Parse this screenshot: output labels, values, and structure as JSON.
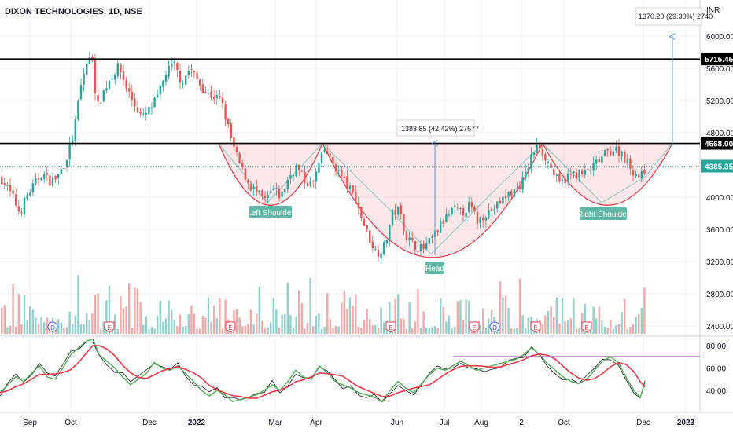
{
  "header": {
    "symbol_line": "DIXON TECHNOLOGIES, 1D, NSE",
    "currency": "INR"
  },
  "chart_data": {
    "type": "candlestick",
    "price_axis": {
      "ticks": [
        "6000.00",
        "5600.00",
        "5200.00",
        "4800.00",
        "4000.00",
        "3600.00",
        "3200.00",
        "2800.00",
        "2400.00"
      ],
      "range": [
        2200,
        6300
      ]
    },
    "osc_axis": {
      "ticks": [
        "80.00",
        "60.00",
        "40.00"
      ],
      "range": [
        18,
        92
      ]
    },
    "x_labels": [
      "Sep",
      "Oct",
      "Dec",
      "2022",
      "Mar",
      "Apr",
      "Jun",
      "Jul",
      "Aug",
      "2",
      "Oct",
      "Dec",
      "2023"
    ],
    "price_labels": {
      "resistance_top": "5715.45",
      "neckline": "4668.00",
      "last_price": "4385.35"
    },
    "levels": [
      5715.45,
      4668.0,
      4385.35
    ],
    "annotations": {
      "target": "1370.20 (29.30%) 2740",
      "depth": "1383.85 (42.42%) 27677",
      "left_shoulder": "Left Shoulder",
      "head": "Head",
      "right_shoulder": "Right Shoulder"
    },
    "markers": [
      "D",
      "E",
      "E",
      "E",
      "E",
      "D",
      "E",
      "E"
    ],
    "osc_level": 70,
    "pattern": "inverse head and shoulders",
    "close_path": [
      [
        0,
        4240
      ],
      [
        8,
        4120
      ],
      [
        16,
        3980
      ],
      [
        24,
        3800
      ],
      [
        32,
        4000
      ],
      [
        42,
        4150
      ],
      [
        52,
        4300
      ],
      [
        62,
        4200
      ],
      [
        72,
        4250
      ],
      [
        82,
        4450
      ],
      [
        92,
        4750
      ],
      [
        100,
        5300
      ],
      [
        108,
        5650
      ],
      [
        116,
        5750
      ],
      [
        122,
        5100
      ],
      [
        130,
        5300
      ],
      [
        140,
        5500
      ],
      [
        150,
        5620
      ],
      [
        160,
        5350
      ],
      [
        170,
        5150
      ],
      [
        180,
        4980
      ],
      [
        190,
        5100
      ],
      [
        200,
        5250
      ],
      [
        210,
        5550
      ],
      [
        220,
        5650
      ],
      [
        230,
        5420
      ],
      [
        240,
        5600
      ],
      [
        250,
        5450
      ],
      [
        260,
        5300
      ],
      [
        270,
        5250
      ],
      [
        280,
        5200
      ],
      [
        288,
        4900
      ],
      [
        296,
        4600
      ],
      [
        306,
        4350
      ],
      [
        316,
        4150
      ],
      [
        326,
        4050
      ],
      [
        336,
        3950
      ],
      [
        346,
        4100
      ],
      [
        356,
        4000
      ],
      [
        366,
        4250
      ],
      [
        376,
        4380
      ],
      [
        386,
        4200
      ],
      [
        396,
        4150
      ],
      [
        404,
        4400
      ],
      [
        412,
        4600
      ],
      [
        420,
        4450
      ],
      [
        430,
        4300
      ],
      [
        440,
        4150
      ],
      [
        450,
        4000
      ],
      [
        460,
        3700
      ],
      [
        470,
        3450
      ],
      [
        478,
        3300
      ],
      [
        488,
        3400
      ],
      [
        498,
        3800
      ],
      [
        506,
        3850
      ],
      [
        516,
        3500
      ],
      [
        526,
        3400
      ],
      [
        536,
        3350
      ],
      [
        546,
        3450
      ],
      [
        556,
        3600
      ],
      [
        566,
        3750
      ],
      [
        576,
        3850
      ],
      [
        586,
        3800
      ],
      [
        596,
        3900
      ],
      [
        606,
        3700
      ],
      [
        616,
        3800
      ],
      [
        626,
        3850
      ],
      [
        636,
        3950
      ],
      [
        646,
        4050
      ],
      [
        656,
        4100
      ],
      [
        666,
        4250
      ],
      [
        676,
        4550
      ],
      [
        684,
        4650
      ],
      [
        692,
        4500
      ],
      [
        700,
        4350
      ],
      [
        710,
        4150
      ],
      [
        720,
        4250
      ],
      [
        730,
        4300
      ],
      [
        740,
        4280
      ],
      [
        750,
        4350
      ],
      [
        760,
        4450
      ],
      [
        770,
        4550
      ],
      [
        780,
        4600
      ],
      [
        790,
        4550
      ],
      [
        798,
        4400
      ],
      [
        806,
        4300
      ],
      [
        814,
        4250
      ],
      [
        820,
        4385
      ]
    ],
    "oscillator_path": [
      [
        0,
        38
      ],
      [
        10,
        45
      ],
      [
        20,
        52
      ],
      [
        30,
        48
      ],
      [
        40,
        55
      ],
      [
        50,
        62
      ],
      [
        60,
        52
      ],
      [
        70,
        50
      ],
      [
        80,
        60
      ],
      [
        90,
        72
      ],
      [
        100,
        78
      ],
      [
        110,
        84
      ],
      [
        118,
        86
      ],
      [
        126,
        72
      ],
      [
        136,
        66
      ],
      [
        146,
        60
      ],
      [
        156,
        52
      ],
      [
        166,
        45
      ],
      [
        176,
        50
      ],
      [
        186,
        55
      ],
      [
        196,
        65
      ],
      [
        206,
        60
      ],
      [
        216,
        58
      ],
      [
        226,
        62
      ],
      [
        236,
        55
      ],
      [
        246,
        48
      ],
      [
        256,
        40
      ],
      [
        266,
        35
      ],
      [
        276,
        40
      ],
      [
        286,
        36
      ],
      [
        296,
        30
      ],
      [
        306,
        32
      ],
      [
        316,
        34
      ],
      [
        326,
        36
      ],
      [
        336,
        40
      ],
      [
        346,
        45
      ],
      [
        356,
        40
      ],
      [
        366,
        48
      ],
      [
        376,
        58
      ],
      [
        386,
        52
      ],
      [
        396,
        50
      ],
      [
        406,
        62
      ],
      [
        416,
        56
      ],
      [
        426,
        48
      ],
      [
        436,
        45
      ],
      [
        446,
        42
      ],
      [
        456,
        38
      ],
      [
        466,
        36
      ],
      [
        476,
        34
      ],
      [
        486,
        30
      ],
      [
        496,
        40
      ],
      [
        506,
        48
      ],
      [
        516,
        42
      ],
      [
        526,
        38
      ],
      [
        536,
        46
      ],
      [
        546,
        54
      ],
      [
        556,
        60
      ],
      [
        566,
        58
      ],
      [
        576,
        62
      ],
      [
        586,
        66
      ],
      [
        596,
        62
      ],
      [
        606,
        58
      ],
      [
        616,
        60
      ],
      [
        626,
        62
      ],
      [
        636,
        64
      ],
      [
        646,
        66
      ],
      [
        656,
        68
      ],
      [
        666,
        72
      ],
      [
        676,
        78
      ],
      [
        686,
        72
      ],
      [
        696,
        64
      ],
      [
        706,
        58
      ],
      [
        716,
        52
      ],
      [
        726,
        48
      ],
      [
        736,
        46
      ],
      [
        746,
        50
      ],
      [
        756,
        58
      ],
      [
        766,
        66
      ],
      [
        776,
        70
      ],
      [
        786,
        65
      ],
      [
        796,
        52
      ],
      [
        806,
        40
      ],
      [
        814,
        34
      ],
      [
        820,
        46
      ]
    ]
  }
}
